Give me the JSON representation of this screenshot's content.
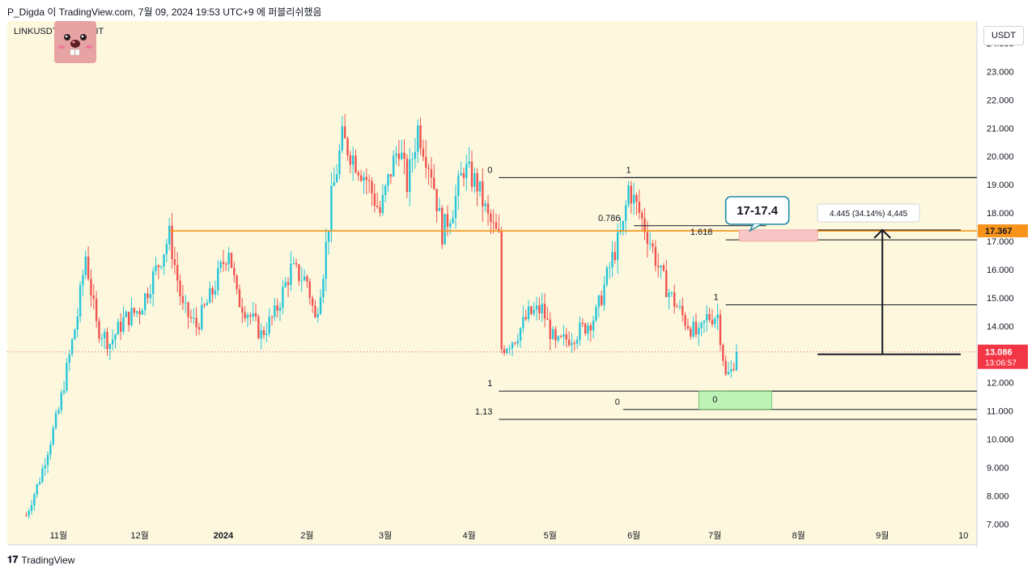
{
  "header": {
    "attribution": "P_Digda 이 TradingView.com, 7월 09, 2024 19:53 UTC+9 에 퍼블리쉬했음"
  },
  "symbol": {
    "label": "LINKUSDT, 1D, BYBIT",
    "unit": "USDT"
  },
  "footer": {
    "brand": "TradingView"
  },
  "price_tags": {
    "orange": {
      "value": "17.367",
      "color": "#f7931a"
    },
    "current": {
      "value": "13.086",
      "countdown": "13:06:57",
      "color": "#f23645"
    }
  },
  "annotations": {
    "target_callout": "17-17.4",
    "measure_label": "4.445 (34.14%) 4,445",
    "fib_left": [
      {
        "label": "0",
        "price": 19.25
      },
      {
        "label": "1",
        "price": 11.7
      },
      {
        "label": "1.13",
        "price": 10.7
      }
    ],
    "fib_right": [
      {
        "label": "1",
        "price": 19.25
      },
      {
        "label": "0.786",
        "price": 17.55
      },
      {
        "label": "0",
        "price": 11.05
      },
      {
        "label": "1.618",
        "price": 17.05
      }
    ],
    "fib_small": [
      {
        "label": "1",
        "price": 14.75
      },
      {
        "label": "0",
        "price": 11.7
      }
    ],
    "green_box_label": "0"
  },
  "colors": {
    "background": "#fdf8dd",
    "up": "#26c6da",
    "down": "#ef5350",
    "orange": "#f7931a",
    "target_box": "#f8c6c6",
    "support_box": "#b2f0b0",
    "callout_border": "#1e88a8"
  },
  "chart_data": {
    "type": "candlestick",
    "y_axis": {
      "ticks": [
        "24.000",
        "23.000",
        "22.000",
        "21.000",
        "20.000",
        "19.000",
        "18.000",
        "17.000",
        "16.000",
        "15.000",
        "14.000",
        "13.000",
        "12.000",
        "11.000",
        "10.000",
        "9.000",
        "8.000",
        "7.000"
      ],
      "ylim": [
        7.0,
        24.5
      ]
    },
    "x_axis": {
      "ticks": [
        "11월",
        "12월",
        "2024",
        "2월",
        "3월",
        "4월",
        "5월",
        "6월",
        "7월",
        "8월",
        "9월",
        "10"
      ]
    },
    "horizontal_levels": [
      {
        "name": "resistance",
        "value": 17.367
      },
      {
        "name": "current",
        "value": 13.086
      }
    ],
    "price_path": [
      [
        "2023-10-20",
        7.3
      ],
      [
        "2023-10-25",
        8.6
      ],
      [
        "2023-11-01",
        11.0
      ],
      [
        "2023-11-08",
        14.4
      ],
      [
        "2023-11-11",
        16.5
      ],
      [
        "2023-11-15",
        14.0
      ],
      [
        "2023-11-20",
        13.4
      ],
      [
        "2023-11-25",
        14.2
      ],
      [
        "2023-12-01",
        14.6
      ],
      [
        "2023-12-08",
        16.2
      ],
      [
        "2023-12-12",
        17.2
      ],
      [
        "2023-12-17",
        14.6
      ],
      [
        "2023-12-22",
        14.0
      ],
      [
        "2023-12-28",
        15.2
      ],
      [
        "2024-01-03",
        16.8
      ],
      [
        "2024-01-06",
        15.0
      ],
      [
        "2024-01-10",
        14.5
      ],
      [
        "2024-01-15",
        13.7
      ],
      [
        "2024-01-20",
        14.4
      ],
      [
        "2024-01-26",
        16.0
      ],
      [
        "2024-02-01",
        15.6
      ],
      [
        "2024-02-04",
        14.2
      ],
      [
        "2024-02-07",
        16.0
      ],
      [
        "2024-02-10",
        18.5
      ],
      [
        "2024-02-14",
        20.6
      ],
      [
        "2024-02-18",
        20.0
      ],
      [
        "2024-02-23",
        19.2
      ],
      [
        "2024-02-28",
        18.0
      ],
      [
        "2024-03-03",
        19.5
      ],
      [
        "2024-03-06",
        20.4
      ],
      [
        "2024-03-09",
        19.0
      ],
      [
        "2024-03-13",
        21.0
      ],
      [
        "2024-03-18",
        19.5
      ],
      [
        "2024-03-22",
        17.3
      ],
      [
        "2024-03-26",
        18.2
      ],
      [
        "2024-03-30",
        19.6
      ],
      [
        "2024-04-04",
        19.0
      ],
      [
        "2024-04-08",
        17.8
      ],
      [
        "2024-04-12",
        17.1
      ],
      [
        "2024-04-13",
        13.2
      ],
      [
        "2024-04-18",
        13.6
      ],
      [
        "2024-04-23",
        14.4
      ],
      [
        "2024-04-28",
        14.6
      ],
      [
        "2024-05-03",
        13.3
      ],
      [
        "2024-05-08",
        13.6
      ],
      [
        "2024-05-13",
        13.9
      ],
      [
        "2024-05-18",
        14.4
      ],
      [
        "2024-05-24",
        16.4
      ],
      [
        "2024-05-28",
        17.5
      ],
      [
        "2024-05-30",
        18.9
      ],
      [
        "2024-06-03",
        18.0
      ],
      [
        "2024-06-07",
        17.0
      ],
      [
        "2024-06-11",
        15.8
      ],
      [
        "2024-06-15",
        15.0
      ],
      [
        "2024-06-20",
        14.2
      ],
      [
        "2024-06-25",
        13.6
      ],
      [
        "2024-06-28",
        14.3
      ],
      [
        "2024-07-02",
        14.4
      ],
      [
        "2024-07-05",
        12.2
      ],
      [
        "2024-07-07",
        12.4
      ],
      [
        "2024-07-09",
        13.086
      ]
    ]
  }
}
